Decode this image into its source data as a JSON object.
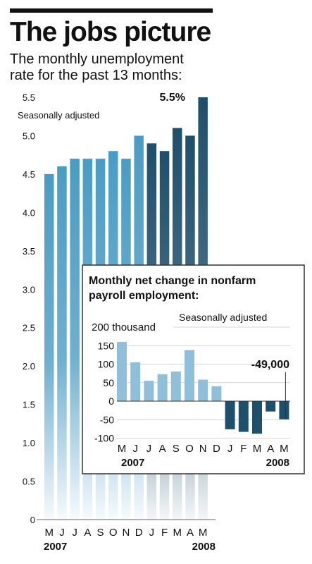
{
  "title": "The jobs picture",
  "subtitle_lines": [
    "The monthly unemployment",
    "rate for the past 13 months:"
  ],
  "colors": {
    "light_bar": "#4a9cc4",
    "dark_bar": "#1e4f6b",
    "inset_light_bar": "#8fbfd9",
    "inset_dark_bar": "#1e4f6b"
  },
  "chart_data": [
    {
      "type": "bar",
      "title": "The jobs picture",
      "note": "Seasonally adjusted",
      "categories": [
        "M",
        "J",
        "J",
        "A",
        "S",
        "O",
        "N",
        "D",
        "J",
        "F",
        "M",
        "A",
        "M"
      ],
      "year_labels": [
        "2007",
        "2008"
      ],
      "values": [
        4.5,
        4.6,
        4.7,
        4.7,
        4.7,
        4.8,
        4.7,
        5.0,
        4.9,
        4.8,
        5.1,
        5.0,
        5.5
      ],
      "ylim": [
        0,
        5.5
      ],
      "yticks": [
        "0",
        "0.5",
        "1.0",
        "1.5",
        "2.0",
        "2.5",
        "3.0",
        "3.5",
        "4.0",
        "4.5",
        "5.0",
        "5.5"
      ],
      "annotation": "5.5%"
    },
    {
      "type": "bar",
      "title": "Monthly net change in nonfarm payroll employment:",
      "note": "Seasonally adjusted",
      "unit_label": "200 thousand",
      "categories": [
        "M",
        "J",
        "J",
        "A",
        "S",
        "O",
        "N",
        "D",
        "J",
        "F",
        "M",
        "A",
        "M"
      ],
      "year_labels": [
        "2007",
        "2008"
      ],
      "values": [
        160,
        105,
        55,
        73,
        80,
        138,
        58,
        40,
        -76,
        -83,
        -88,
        -28,
        -49
      ],
      "ylim": [
        -100,
        200
      ],
      "yticks": [
        "-100",
        "-50",
        "0",
        "50",
        "100",
        "150"
      ],
      "annotation": "-49,000"
    }
  ]
}
